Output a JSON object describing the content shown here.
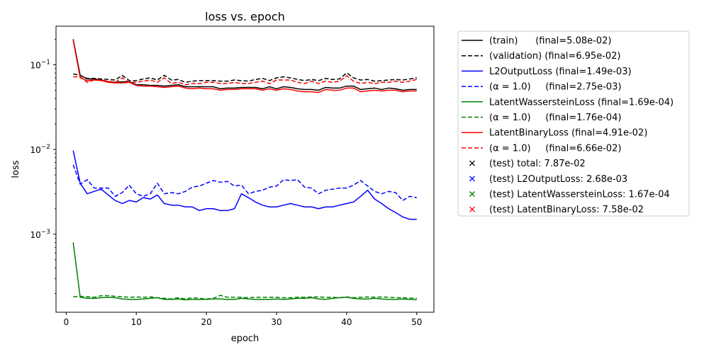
{
  "chart_data": {
    "type": "line",
    "title": "loss vs. epoch",
    "xlabel": "epoch",
    "ylabel": "loss",
    "yscale": "log",
    "xlim": [
      -1.45,
      52.45
    ],
    "ylim": [
      0.00012,
      0.285
    ],
    "xticks": [
      0,
      10,
      20,
      30,
      40,
      50
    ],
    "yticks": [
      {
        "value": 0.001,
        "base": "10",
        "exp": "−3"
      },
      {
        "value": 0.01,
        "base": "10",
        "exp": "−2"
      },
      {
        "value": 0.1,
        "base": "10",
        "exp": "−1"
      }
    ],
    "grid": false,
    "legend_position": "outside-right",
    "x": [
      1,
      2,
      3,
      4,
      5,
      6,
      7,
      8,
      9,
      10,
      11,
      12,
      13,
      14,
      15,
      16,
      17,
      18,
      19,
      20,
      21,
      22,
      23,
      24,
      25,
      26,
      27,
      28,
      29,
      30,
      31,
      32,
      33,
      34,
      35,
      36,
      37,
      38,
      39,
      40,
      41,
      42,
      43,
      44,
      45,
      46,
      47,
      48,
      49,
      50
    ],
    "series": [
      {
        "name": "(train)      (final=5.08e-02)",
        "color": "#000000",
        "dash": "solid",
        "values": [
          0.2,
          0.075,
          0.068,
          0.068,
          0.066,
          0.063,
          0.062,
          0.063,
          0.063,
          0.058,
          0.058,
          0.057,
          0.057,
          0.056,
          0.057,
          0.058,
          0.055,
          0.055,
          0.055,
          0.055,
          0.055,
          0.052,
          0.053,
          0.053,
          0.054,
          0.054,
          0.054,
          0.052,
          0.055,
          0.052,
          0.055,
          0.054,
          0.052,
          0.051,
          0.051,
          0.05,
          0.054,
          0.053,
          0.053,
          0.056,
          0.056,
          0.051,
          0.052,
          0.053,
          0.051,
          0.053,
          0.052,
          0.05,
          0.051,
          0.051
        ]
      },
      {
        "name": "(validation) (final=6.95e-02)",
        "color": "#000000",
        "dash": "dashed",
        "values": [
          0.078,
          0.075,
          0.069,
          0.069,
          0.068,
          0.067,
          0.066,
          0.075,
          0.065,
          0.065,
          0.068,
          0.07,
          0.066,
          0.075,
          0.066,
          0.067,
          0.062,
          0.064,
          0.065,
          0.065,
          0.065,
          0.064,
          0.064,
          0.066,
          0.065,
          0.064,
          0.067,
          0.069,
          0.065,
          0.07,
          0.072,
          0.07,
          0.067,
          0.065,
          0.067,
          0.065,
          0.069,
          0.067,
          0.068,
          0.08,
          0.07,
          0.066,
          0.067,
          0.064,
          0.065,
          0.066,
          0.067,
          0.066,
          0.068,
          0.07
        ]
      },
      {
        "name": "L2OutputLoss (final=1.49e-03)",
        "color": "#0000ff",
        "dash": "solid",
        "values": [
          0.0097,
          0.004,
          0.003,
          0.0032,
          0.0034,
          0.0029,
          0.0025,
          0.0023,
          0.0025,
          0.0024,
          0.0027,
          0.0026,
          0.0029,
          0.0023,
          0.0022,
          0.0022,
          0.0021,
          0.0021,
          0.0019,
          0.002,
          0.002,
          0.0019,
          0.0019,
          0.002,
          0.003,
          0.0027,
          0.0024,
          0.0022,
          0.0021,
          0.0021,
          0.0022,
          0.0023,
          0.0022,
          0.0021,
          0.0021,
          0.002,
          0.0021,
          0.0021,
          0.0022,
          0.0023,
          0.0024,
          0.0028,
          0.0033,
          0.0026,
          0.0023,
          0.002,
          0.0018,
          0.0016,
          0.0015,
          0.0015
        ]
      },
      {
        "name": "(α = 1.0)     (final=2.75e-03)",
        "color": "#0000ff",
        "dash": "dashed",
        "values": [
          0.0066,
          0.0039,
          0.0044,
          0.0035,
          0.0035,
          0.0035,
          0.0028,
          0.0031,
          0.0038,
          0.003,
          0.0028,
          0.003,
          0.004,
          0.003,
          0.0031,
          0.003,
          0.0032,
          0.0036,
          0.0037,
          0.004,
          0.0043,
          0.0041,
          0.0042,
          0.0037,
          0.0038,
          0.003,
          0.0032,
          0.0033,
          0.0036,
          0.0037,
          0.0044,
          0.0043,
          0.0044,
          0.0036,
          0.0035,
          0.003,
          0.0033,
          0.0034,
          0.0035,
          0.0035,
          0.0038,
          0.0043,
          0.0037,
          0.0032,
          0.003,
          0.0032,
          0.0031,
          0.0025,
          0.0028,
          0.0027
        ]
      },
      {
        "name": "LatentWassersteinLoss (final=1.69e-04)",
        "color": "#008000",
        "dash": "solid",
        "values": [
          0.0008,
          0.00018,
          0.000175,
          0.000175,
          0.000178,
          0.00018,
          0.000178,
          0.000172,
          0.00017,
          0.00017,
          0.000172,
          0.000175,
          0.000178,
          0.00017,
          0.00017,
          0.000172,
          0.000168,
          0.00017,
          0.00017,
          0.00017,
          0.000172,
          0.000172,
          0.00017,
          0.00017,
          0.000175,
          0.000172,
          0.00017,
          0.00017,
          0.00017,
          0.000172,
          0.00017,
          0.000172,
          0.000175,
          0.000175,
          0.000178,
          0.000172,
          0.00017,
          0.000175,
          0.000178,
          0.00018,
          0.000175,
          0.000172,
          0.000172,
          0.000175,
          0.000172,
          0.00017,
          0.00017,
          0.000172,
          0.00017,
          0.000169
        ]
      },
      {
        "name": "(α = 1.0)     (final=1.76e-04)",
        "color": "#008000",
        "dash": "dashed",
        "values": [
          0.000183,
          0.000185,
          0.000183,
          0.00018,
          0.000188,
          0.000188,
          0.000185,
          0.000183,
          0.00018,
          0.000182,
          0.00018,
          0.000182,
          0.000178,
          0.000175,
          0.000172,
          0.000178,
          0.000172,
          0.000178,
          0.000175,
          0.000172,
          0.000175,
          0.00019,
          0.00018,
          0.00018,
          0.00018,
          0.000178,
          0.00018,
          0.00018,
          0.00018,
          0.00018,
          0.000178,
          0.000178,
          0.00018,
          0.00018,
          0.000182,
          0.000182,
          0.00018,
          0.00018,
          0.000178,
          0.000182,
          0.000178,
          0.00018,
          0.000182,
          0.00018,
          0.000182,
          0.00018,
          0.000178,
          0.000178,
          0.000176,
          0.000176
        ]
      },
      {
        "name": "LatentBinaryLoss (final=4.91e-02)",
        "color": "#ff0000",
        "dash": "solid",
        "values": [
          0.195,
          0.07,
          0.065,
          0.066,
          0.065,
          0.062,
          0.061,
          0.061,
          0.062,
          0.057,
          0.056,
          0.056,
          0.055,
          0.054,
          0.055,
          0.056,
          0.053,
          0.052,
          0.053,
          0.052,
          0.052,
          0.05,
          0.051,
          0.051,
          0.052,
          0.052,
          0.052,
          0.05,
          0.052,
          0.05,
          0.052,
          0.051,
          0.049,
          0.048,
          0.048,
          0.047,
          0.051,
          0.05,
          0.05,
          0.053,
          0.053,
          0.048,
          0.049,
          0.05,
          0.049,
          0.05,
          0.05,
          0.048,
          0.049,
          0.049
        ]
      },
      {
        "name": "(α = 1.0)     (final=6.66e-02)",
        "color": "#ff0000",
        "dash": "dashed",
        "values": [
          0.072,
          0.072,
          0.062,
          0.066,
          0.066,
          0.064,
          0.062,
          0.07,
          0.062,
          0.062,
          0.064,
          0.066,
          0.062,
          0.07,
          0.06,
          0.062,
          0.058,
          0.06,
          0.06,
          0.062,
          0.062,
          0.06,
          0.06,
          0.062,
          0.06,
          0.06,
          0.062,
          0.064,
          0.06,
          0.066,
          0.066,
          0.066,
          0.062,
          0.06,
          0.064,
          0.06,
          0.064,
          0.062,
          0.064,
          0.074,
          0.064,
          0.06,
          0.062,
          0.06,
          0.062,
          0.062,
          0.064,
          0.062,
          0.064,
          0.067
        ]
      }
    ],
    "test_points": [
      {
        "name": "(test) total: 7.87e-02",
        "color": "#000000"
      },
      {
        "name": "(test) L2OutputLoss: 2.68e-03",
        "color": "#0000ff"
      },
      {
        "name": "(test) LatentWassersteinLoss: 1.67e-04",
        "color": "#008000"
      },
      {
        "name": "(test) LatentBinaryLoss: 7.58e-02",
        "color": "#ff0000"
      }
    ]
  }
}
